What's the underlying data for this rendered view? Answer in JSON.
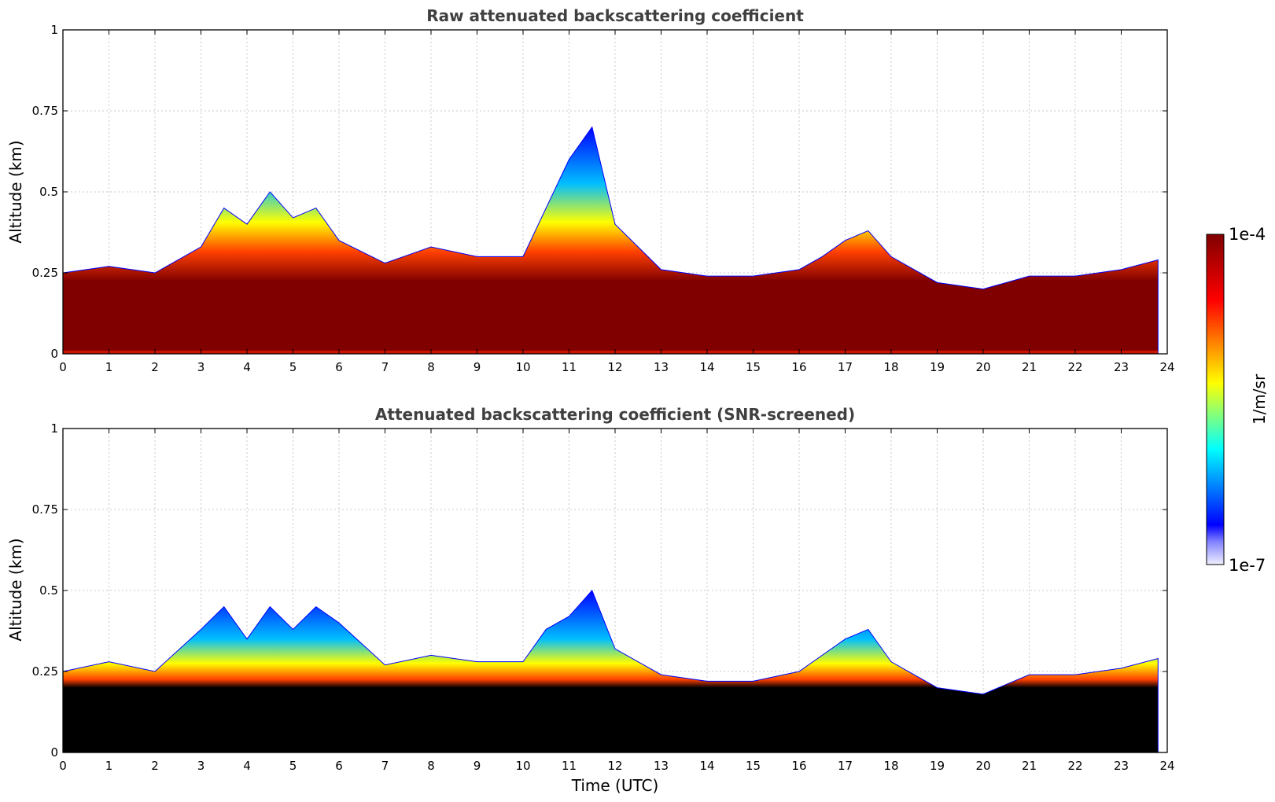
{
  "chart_data": [
    {
      "type": "heatmap",
      "title": "Raw attenuated backscattering coefficient",
      "xlabel": "",
      "ylabel": "Altitude (km)",
      "xlim": [
        0,
        24
      ],
      "ylim": [
        0,
        1
      ],
      "x_ticks": [
        0,
        1,
        2,
        3,
        4,
        5,
        6,
        7,
        8,
        9,
        10,
        11,
        12,
        13,
        14,
        15,
        16,
        17,
        18,
        19,
        20,
        21,
        22,
        23,
        24
      ],
      "y_ticks": [
        0,
        0.25,
        0.5,
        0.75,
        1
      ],
      "y_tick_labels": [
        "0",
        "0.25",
        "0.5",
        "0.75",
        "1"
      ],
      "grid": true,
      "colormap": "jet",
      "layer_top_km": {
        "x": [
          0,
          1,
          2,
          3,
          3.5,
          4,
          4.5,
          5,
          5.5,
          6,
          7,
          8,
          9,
          10,
          10.5,
          11,
          11.5,
          12,
          12.5,
          13,
          14,
          15,
          16,
          16.5,
          17,
          17.5,
          18,
          19,
          20,
          21,
          22,
          23,
          23.8
        ],
        "y": [
          0.25,
          0.27,
          0.25,
          0.33,
          0.45,
          0.4,
          0.5,
          0.42,
          0.45,
          0.35,
          0.28,
          0.33,
          0.3,
          0.3,
          0.45,
          0.6,
          0.7,
          0.4,
          0.33,
          0.26,
          0.24,
          0.24,
          0.26,
          0.3,
          0.35,
          0.38,
          0.3,
          0.22,
          0.2,
          0.24,
          0.24,
          0.26,
          0.29
        ]
      }
    },
    {
      "type": "heatmap",
      "title": "Attenuated backscattering coefficient (SNR-screened)",
      "xlabel": "Time (UTC)",
      "ylabel": "Altitude (km)",
      "xlim": [
        0,
        24
      ],
      "ylim": [
        0,
        1
      ],
      "x_ticks": [
        0,
        1,
        2,
        3,
        4,
        5,
        6,
        7,
        8,
        9,
        10,
        11,
        12,
        13,
        14,
        15,
        16,
        17,
        18,
        19,
        20,
        21,
        22,
        23,
        24
      ],
      "y_ticks": [
        0,
        0.25,
        0.5,
        0.75,
        1
      ],
      "y_tick_labels": [
        "0",
        "0.25",
        "0.5",
        "0.75",
        "1"
      ],
      "grid": true,
      "colormap": "jet",
      "layer_top_km": {
        "x": [
          0,
          1,
          2,
          3,
          3.5,
          4,
          4.5,
          5,
          5.5,
          6,
          7,
          8,
          9,
          10,
          10.5,
          11,
          11.5,
          12,
          12.5,
          13,
          14,
          15,
          16,
          16.5,
          17,
          17.5,
          18,
          19,
          20,
          21,
          22,
          23,
          23.8
        ],
        "y": [
          0.25,
          0.28,
          0.25,
          0.38,
          0.45,
          0.35,
          0.45,
          0.38,
          0.45,
          0.4,
          0.27,
          0.3,
          0.28,
          0.28,
          0.38,
          0.42,
          0.5,
          0.32,
          0.28,
          0.24,
          0.22,
          0.22,
          0.25,
          0.3,
          0.35,
          0.38,
          0.28,
          0.2,
          0.18,
          0.24,
          0.24,
          0.26,
          0.29
        ]
      }
    }
  ],
  "colorbar": {
    "max_label": "1e-4",
    "min_label": "1e-7",
    "label": "1/m/sr",
    "colors": [
      "#f0f0ff",
      "#0000ff",
      "#00ffff",
      "#ffff00",
      "#ff0000",
      "#800000"
    ]
  }
}
